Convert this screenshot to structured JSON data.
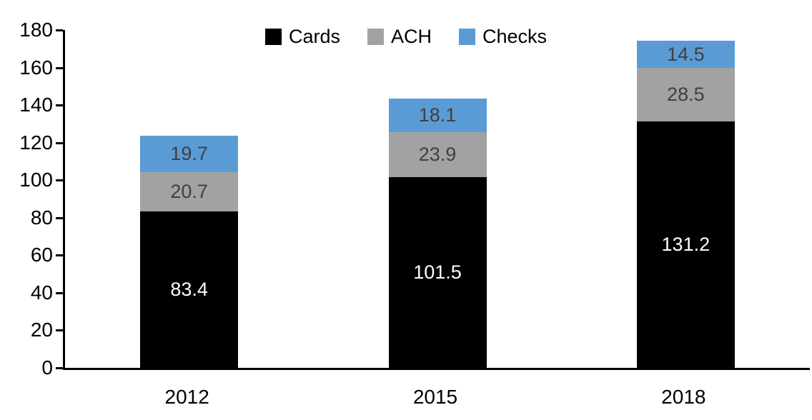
{
  "chart_data": {
    "type": "bar",
    "stacked": true,
    "title": "",
    "xlabel": "",
    "ylabel": "",
    "categories": [
      "2012",
      "2015",
      "2018"
    ],
    "series": [
      {
        "name": "Cards",
        "color": "#000000",
        "label_color": "#ffffff",
        "values": [
          83.4,
          101.5,
          131.2
        ]
      },
      {
        "name": "ACH",
        "color": "#a2a2a2",
        "label_color": "#404040",
        "values": [
          20.7,
          23.9,
          28.5
        ]
      },
      {
        "name": "Checks",
        "color": "#5b9bd5",
        "label_color": "#404040",
        "values": [
          19.7,
          18.1,
          14.5
        ]
      }
    ],
    "ylim": [
      0,
      180
    ],
    "yticks": [
      0,
      20,
      40,
      60,
      80,
      100,
      120,
      140,
      160,
      180
    ],
    "grid": false,
    "legend_position": "top",
    "data_labels": true,
    "axis_color": "#000000"
  },
  "legend": {
    "items": [
      {
        "label": "Cards",
        "color": "#000000"
      },
      {
        "label": "ACH",
        "color": "#a2a2a2"
      },
      {
        "label": "Checks",
        "color": "#5b9bd5"
      }
    ]
  }
}
